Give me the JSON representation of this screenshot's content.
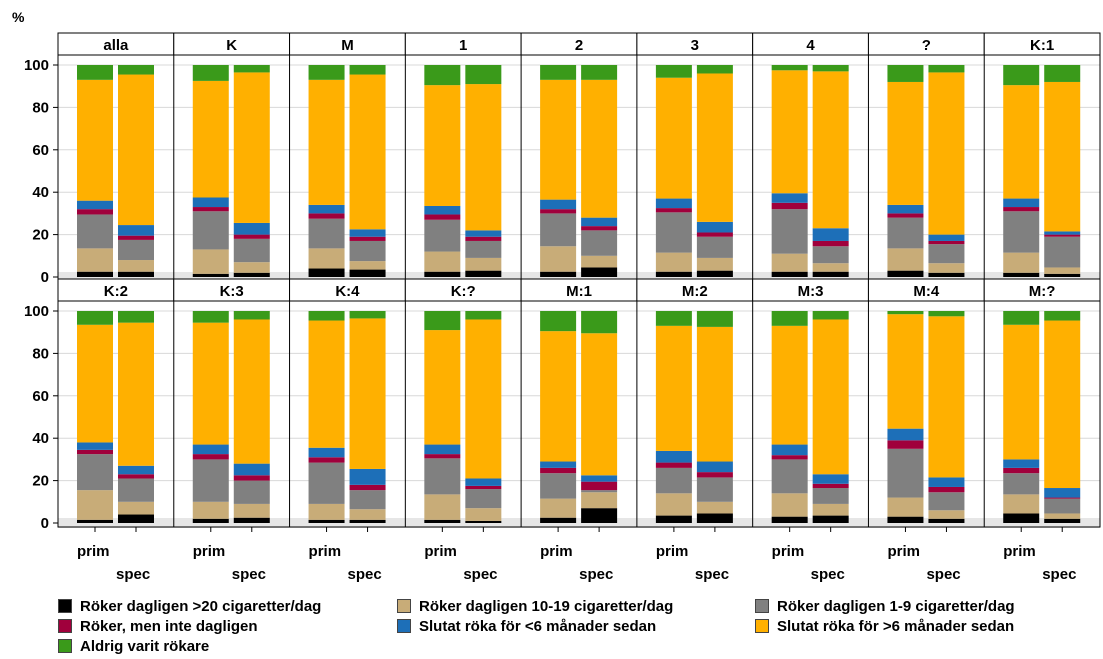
{
  "chart_data": {
    "type": "bar",
    "stacked": true,
    "percent_stacked": true,
    "ylabel": "%",
    "ylim": [
      0,
      100
    ],
    "yticks": [
      0,
      20,
      40,
      60,
      80,
      100
    ],
    "grid": true,
    "legend_position": "bottom",
    "categories": [
      "prim",
      "spec"
    ],
    "series": [
      {
        "name": "Röker dagligen >20 cigaretter/dag",
        "color": "#000000"
      },
      {
        "name": "Röker dagligen 10-19 cigaretter/dag",
        "color": "#c8ac78"
      },
      {
        "name": "Röker dagligen 1-9 cigaretter/dag",
        "color": "#808080"
      },
      {
        "name": "Röker, men inte dagligen",
        "color": "#a0003c"
      },
      {
        "name": "Slutat röka för <6 månader sedan",
        "color": "#1d6fb8"
      },
      {
        "name": "Slutat röka för >6 månader sedan",
        "color": "#ffb000"
      },
      {
        "name": "Aldrig varit rökare",
        "color": "#3a9a1a"
      }
    ],
    "panels": [
      {
        "label": "alla",
        "prim": [
          2.5,
          11,
          16,
          2.5,
          4,
          57,
          7
        ],
        "spec": [
          2.5,
          5.5,
          9.5,
          2,
          5,
          71,
          4.5
        ]
      },
      {
        "label": "K",
        "prim": [
          1.5,
          11.5,
          18,
          2,
          4.5,
          55,
          7.5
        ],
        "spec": [
          2,
          5,
          11,
          2,
          5.5,
          71,
          3.5
        ]
      },
      {
        "label": "M",
        "prim": [
          4,
          9.5,
          14,
          2.5,
          4,
          59,
          7
        ],
        "spec": [
          3.5,
          4,
          9.5,
          2,
          3.5,
          73,
          4.5
        ]
      },
      {
        "label": "1",
        "prim": [
          2.5,
          9.5,
          15,
          2.5,
          4,
          57,
          9.5
        ],
        "spec": [
          3,
          6,
          8,
          2,
          3,
          69,
          9
        ]
      },
      {
        "label": "2",
        "prim": [
          2.5,
          12,
          15.5,
          2,
          4.5,
          56.5,
          7
        ],
        "spec": [
          4.5,
          5.5,
          12,
          2,
          4,
          65,
          7
        ]
      },
      {
        "label": "3",
        "prim": [
          2.5,
          9,
          19,
          2,
          4.5,
          57,
          6
        ],
        "spec": [
          3,
          6,
          10,
          2,
          5,
          70,
          4
        ]
      },
      {
        "label": "4",
        "prim": [
          2.5,
          8.5,
          21,
          3,
          4.5,
          58,
          2.5
        ],
        "spec": [
          2.5,
          4,
          8,
          2.5,
          6,
          74,
          3
        ]
      },
      {
        "label": "?",
        "prim": [
          3,
          10.5,
          14.5,
          2,
          4,
          58,
          8
        ],
        "spec": [
          2,
          4.5,
          9,
          1.5,
          3,
          76.5,
          3.5
        ]
      },
      {
        "label": "K:1",
        "prim": [
          2,
          9.5,
          19.5,
          2,
          4,
          53.5,
          9.5
        ],
        "spec": [
          1.5,
          3,
          14.5,
          1,
          1.5,
          70.5,
          8
        ]
      },
      {
        "label": "K:2",
        "prim": [
          1.5,
          14,
          17,
          2,
          3.5,
          55.5,
          6.5
        ],
        "spec": [
          4,
          6,
          11,
          2,
          4,
          67.5,
          5.5
        ]
      },
      {
        "label": "K:3",
        "prim": [
          2,
          8,
          20,
          2.5,
          4.5,
          57.5,
          5.5
        ],
        "spec": [
          2.5,
          6.5,
          11,
          2.5,
          5.5,
          68,
          4
        ]
      },
      {
        "label": "K:4",
        "prim": [
          1.5,
          7.5,
          19.5,
          2.5,
          4.5,
          60,
          4.5
        ],
        "spec": [
          1.5,
          5,
          9,
          2.5,
          7.5,
          71,
          3.5
        ]
      },
      {
        "label": "K:?",
        "prim": [
          1.5,
          12,
          17,
          2,
          4.5,
          54,
          9
        ],
        "spec": [
          1,
          6,
          9,
          1.5,
          3.5,
          75,
          4
        ]
      },
      {
        "label": "M:1",
        "prim": [
          2.5,
          9,
          12,
          2.5,
          3,
          61.5,
          9.5
        ],
        "spec": [
          7,
          7.5,
          1,
          4,
          3,
          67,
          10.5
        ]
      },
      {
        "label": "M:2",
        "prim": [
          3.5,
          10.5,
          12,
          2.5,
          5.5,
          59,
          7
        ],
        "spec": [
          4.5,
          5.5,
          11.5,
          2.5,
          5,
          63.5,
          7.5
        ]
      },
      {
        "label": "M:3",
        "prim": [
          3,
          11,
          16,
          2,
          5,
          56,
          7
        ],
        "spec": [
          3.5,
          5.5,
          7.5,
          2,
          4.5,
          73,
          4
        ]
      },
      {
        "label": "M:4",
        "prim": [
          3,
          9,
          23,
          4,
          5.5,
          54,
          1.5
        ],
        "spec": [
          2,
          4,
          8.5,
          2.5,
          4.5,
          76,
          2.5
        ]
      },
      {
        "label": "M:?",
        "prim": [
          4.5,
          9,
          10,
          2.5,
          4,
          63.5,
          6.5
        ],
        "spec": [
          2,
          2.5,
          7,
          0.5,
          4.5,
          79,
          4.5
        ]
      }
    ]
  }
}
